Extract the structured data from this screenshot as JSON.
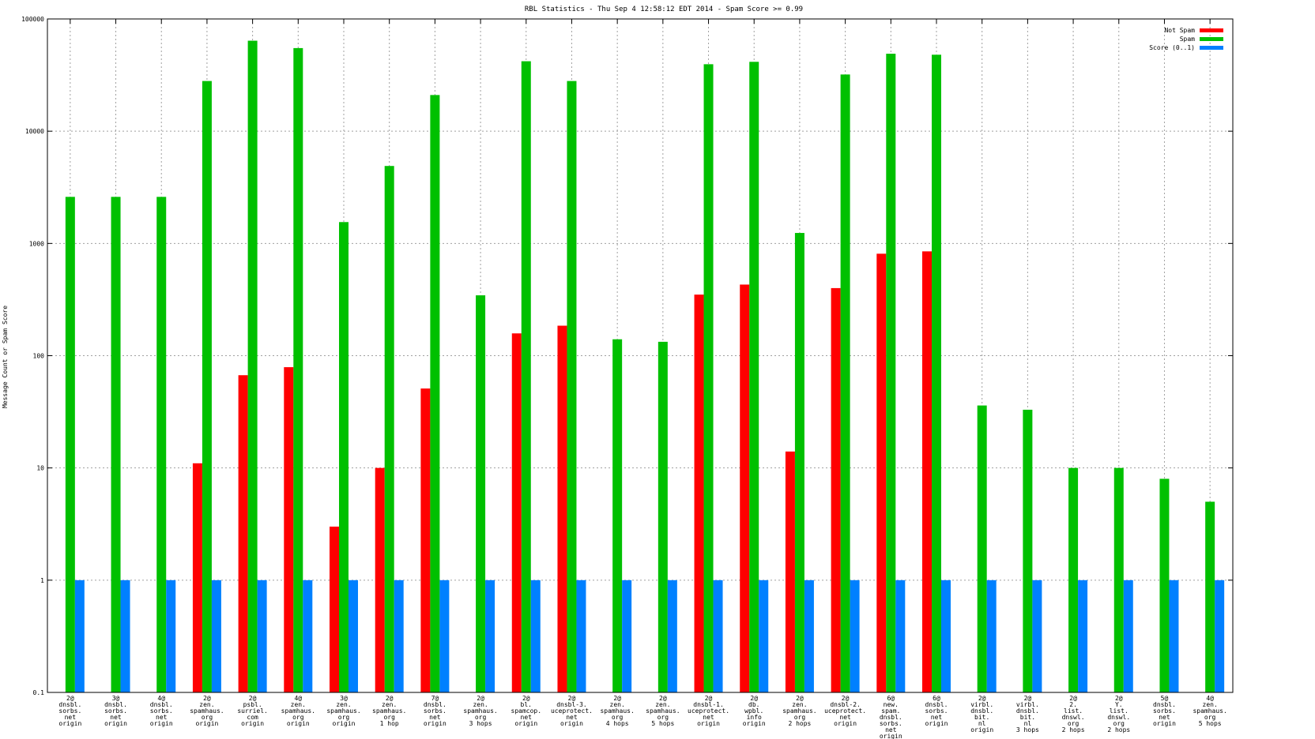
{
  "chart_data": {
    "type": "bar",
    "title": "RBL Statistics - Thu Sep  4 12:58:12 EDT 2014 - Spam Score >= 0.99",
    "ylabel": "Message Count or Spam Score",
    "xlabel": "",
    "yscale": "log",
    "ylim": [
      0.1,
      100000
    ],
    "yticks": [
      "0.1",
      "1",
      "10",
      "100",
      "1000",
      "10000",
      "100000"
    ],
    "grid": true,
    "legend_position": "top-right",
    "categories": [
      [
        "2@",
        "dnsbl.",
        "sorbs.",
        "net",
        "origin"
      ],
      [
        "3@",
        "dnsbl.",
        "sorbs.",
        "net",
        "origin"
      ],
      [
        "4@",
        "dnsbl.",
        "sorbs.",
        "net",
        "origin"
      ],
      [
        "2@",
        "zen.",
        "spamhaus.",
        "org",
        "origin"
      ],
      [
        "2@",
        "psbl.",
        "surriel.",
        "com",
        "origin"
      ],
      [
        "4@",
        "zen.",
        "spamhaus.",
        "org",
        "origin"
      ],
      [
        "3@",
        "zen.",
        "spamhaus.",
        "org",
        "origin"
      ],
      [
        "2@",
        "zen.",
        "spamhaus.",
        "org",
        "1 hop"
      ],
      [
        "7@",
        "dnsbl.",
        "sorbs.",
        "net",
        "origin"
      ],
      [
        "2@",
        "zen.",
        "spamhaus.",
        "org",
        "3 hops"
      ],
      [
        "2@",
        "bl.",
        "spamcop.",
        "net",
        "origin"
      ],
      [
        "2@",
        "dnsbl-3.",
        "uceprotect.",
        "net",
        "origin"
      ],
      [
        "2@",
        "zen.",
        "spamhaus.",
        "org",
        "4 hops"
      ],
      [
        "2@",
        "zen.",
        "spamhaus.",
        "org",
        "5 hops"
      ],
      [
        "2@",
        "dnsbl-1.",
        "uceprotect.",
        "net",
        "origin"
      ],
      [
        "2@",
        "db.",
        "wpbl.",
        "info",
        "origin"
      ],
      [
        "2@",
        "zen.",
        "spamhaus.",
        "org",
        "2 hops"
      ],
      [
        "2@",
        "dnsbl-2.",
        "uceprotect.",
        "net",
        "origin"
      ],
      [
        "6@",
        "new.",
        "spam.",
        "dnsbl.",
        "sorbs.",
        "net",
        "origin"
      ],
      [
        "6@",
        "dnsbl.",
        "sorbs.",
        "net",
        "origin"
      ],
      [
        "2@",
        "virbl.",
        "dnsbl.",
        "bit.",
        "nl",
        "origin"
      ],
      [
        "2@",
        "virbl.",
        "dnsbl.",
        "bit.",
        "nl",
        "3 hops"
      ],
      [
        "2@",
        "2.",
        "list.",
        "dnswl.",
        "org",
        "2 hops"
      ],
      [
        "2@",
        "Y.",
        "list.",
        "dnswl.",
        "org",
        "2 hops"
      ],
      [
        "5@",
        "dnsbl.",
        "sorbs.",
        "net",
        "origin"
      ],
      [
        "4@",
        "zen.",
        "spamhaus.",
        "org",
        "5 hops"
      ]
    ],
    "series": [
      {
        "name": "Not Spam",
        "color": "#ff0000",
        "values": [
          null,
          null,
          null,
          11,
          67,
          79,
          3,
          10,
          51,
          null,
          158,
          185,
          null,
          null,
          350,
          430,
          14,
          400,
          810,
          850,
          null,
          null,
          null,
          null,
          null,
          null
        ]
      },
      {
        "name": "Spam",
        "color": "#00c000",
        "values": [
          2600,
          2600,
          2600,
          28000,
          64000,
          55000,
          1550,
          4900,
          21000,
          345,
          42000,
          28000,
          140,
          133,
          39500,
          41500,
          1240,
          32000,
          49000,
          48000,
          36,
          33,
          10,
          10,
          8,
          5
        ]
      },
      {
        "name": "Score (0..1)",
        "color": "#0080ff",
        "values": [
          1,
          1,
          1,
          1,
          1,
          1,
          1,
          1,
          1,
          1,
          1,
          1,
          1,
          1,
          1,
          1,
          1,
          1,
          1,
          1,
          1,
          1,
          1,
          1,
          1,
          1
        ]
      }
    ]
  }
}
